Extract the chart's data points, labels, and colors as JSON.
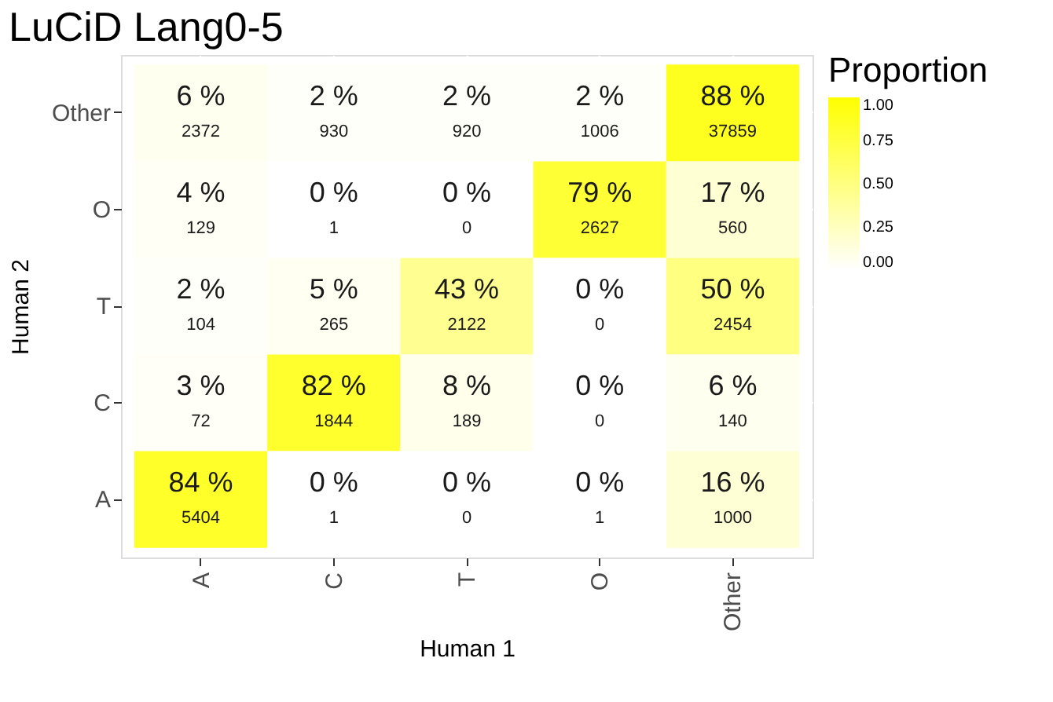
{
  "chart_data": {
    "type": "heatmap",
    "title": "LuCiD Lang0-5",
    "xlabel": "Human 1",
    "ylabel": "Human 2",
    "clabel": "Proportion",
    "categories": [
      "A",
      "C",
      "T",
      "O",
      "Other"
    ],
    "y_categories": [
      "Other",
      "O",
      "T",
      "C",
      "A"
    ],
    "cells": [
      [
        0.06,
        0.02,
        0.02,
        0.02,
        0.88
      ],
      [
        0.04,
        0.0,
        0.0,
        0.79,
        0.17
      ],
      [
        0.02,
        0.05,
        0.43,
        0.0,
        0.5
      ],
      [
        0.03,
        0.82,
        0.08,
        0.0,
        0.06
      ],
      [
        0.84,
        0.0,
        0.0,
        0.0,
        0.16
      ]
    ],
    "cell_labels": [
      [
        "6 %\n2372",
        "2 %\n930",
        "2 %\n920",
        "2 %\n1006",
        "88 %\n37859"
      ],
      [
        "4 %\n129",
        "0 %\n1",
        "0 %\n0",
        "79 %\n2627",
        "17 %\n560"
      ],
      [
        "2 %\n104",
        "5 %\n265",
        "43 %\n2122",
        "0 %\n0",
        "50 %\n2454"
      ],
      [
        "3 %\n72",
        "82 %\n1844",
        "8 %\n189",
        "0 %\n0",
        "6 %\n140"
      ],
      [
        "84 %\n5404",
        "0 %\n1",
        "0 %\n0",
        "0 %\n1",
        "16 %\n1000"
      ]
    ],
    "clim": [
      0,
      1
    ],
    "cticks": [
      {
        "value": 0,
        "label": "0.00"
      },
      {
        "value": 0.25,
        "label": "0.25"
      },
      {
        "value": 0.5,
        "label": "0.50"
      },
      {
        "value": 0.75,
        "label": "0.75"
      },
      {
        "value": 1,
        "label": "1.00"
      }
    ],
    "colors": [
      "#ffffff",
      "#ffff00"
    ],
    "grid": true
  }
}
